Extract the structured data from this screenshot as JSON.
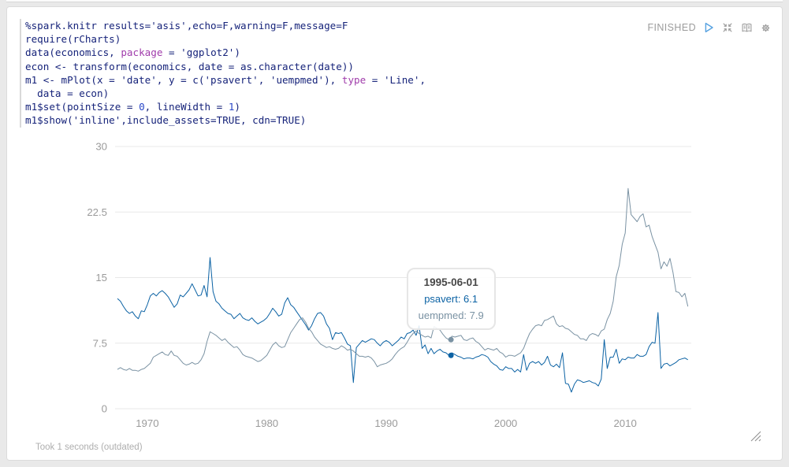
{
  "status_bar": {
    "status": "FINISHED",
    "icons": [
      "play-icon",
      "compress-icon",
      "book-icon",
      "gear-icon"
    ]
  },
  "code": {
    "lines": [
      [
        {
          "t": "%spark.knitr results='asis',echo=F,warning=F,message=F"
        }
      ],
      [
        {
          "t": "require(rCharts)"
        }
      ],
      [
        {
          "t": "data(economics, "
        },
        {
          "t": "package",
          "c": "kw"
        },
        {
          "t": " = 'ggplot2')"
        }
      ],
      [
        {
          "t": "econ <- transform(economics, date = as.character(date))"
        }
      ],
      [
        {
          "t": "m1 <- mPlot(x = 'date', y = c('psavert', 'uempmed'), "
        },
        {
          "t": "type",
          "c": "kw"
        },
        {
          "t": " = 'Line',"
        }
      ],
      [
        {
          "t": "  data = econ)"
        }
      ],
      [
        {
          "t": "m1$set(pointSize = "
        },
        {
          "t": "0",
          "c": "num"
        },
        {
          "t": ", lineWidth = "
        },
        {
          "t": "1",
          "c": "num"
        },
        {
          "t": ")"
        }
      ],
      [
        {
          "t": "m1$show('inline',include_assets=TRUE, cdn=TRUE)"
        }
      ]
    ]
  },
  "footer": {
    "took_text": "Took 1 seconds (outdated)"
  },
  "colors": {
    "code_base": "#16237a",
    "code_keyword": "#a03cab",
    "code_number": "#2846c8",
    "psavert_line": "#0b62a4",
    "uempmed_line": "#7a92a3",
    "grid": "#e8e8e8",
    "axis_text": "#9b9b9b",
    "status_text": "#9c9c9c",
    "play_icon": "#55a1e0",
    "icon_gray": "#9a9a9a"
  },
  "chart_data": {
    "type": "line",
    "title": "",
    "xlabel": "",
    "ylabel": "",
    "xlim": [
      1967.5,
      2015.4
    ],
    "ylim": [
      0,
      30
    ],
    "yticks": [
      0,
      7.5,
      15,
      22.5,
      30
    ],
    "xticks": [
      1970,
      1980,
      1990,
      2000,
      2010
    ],
    "grid": "horizontal-only",
    "legend": "none",
    "x_start": 1967.5,
    "x_step": 0.25,
    "series": [
      {
        "name": "psavert",
        "color": "#0b62a4",
        "values": [
          12.6,
          12.3,
          11.7,
          11.2,
          10.9,
          11.1,
          10.6,
          10.3,
          11.2,
          11.1,
          11.9,
          12.9,
          13.2,
          12.9,
          13.3,
          13.5,
          13.2,
          12.8,
          12.2,
          11.6,
          12.0,
          13.0,
          12.8,
          13.2,
          13.6,
          14.3,
          13.6,
          12.9,
          13.0,
          14.1,
          12.8,
          17.3,
          13.4,
          12.3,
          12.0,
          11.5,
          11.2,
          10.9,
          10.8,
          10.3,
          10.6,
          10.9,
          10.4,
          10.2,
          10.1,
          10.4,
          10.0,
          9.7,
          9.9,
          10.1,
          10.4,
          10.9,
          11.5,
          11.1,
          10.6,
          10.8,
          12.1,
          12.7,
          11.9,
          11.6,
          11.1,
          10.6,
          10.1,
          9.6,
          9.0,
          9.5,
          10.3,
          10.9,
          11.0,
          10.6,
          9.7,
          9.2,
          7.9,
          8.7,
          8.6,
          8.7,
          8.1,
          7.4,
          7.2,
          3.0,
          7.0,
          7.4,
          7.8,
          7.6,
          7.8,
          8.0,
          7.9,
          7.5,
          7.2,
          7.6,
          7.8,
          7.6,
          7.2,
          7.5,
          7.8,
          8.2,
          8.0,
          8.6,
          8.7,
          9.0,
          8.4,
          9.5,
          6.9,
          7.3,
          6.3,
          6.9,
          6.3,
          6.6,
          6.8,
          6.5,
          6.4,
          6.1,
          6.4,
          6.2,
          6.0,
          5.9,
          5.7,
          5.8,
          5.8,
          5.7,
          5.9,
          6.0,
          6.2,
          6.1,
          5.9,
          5.4,
          5.1,
          4.9,
          4.5,
          4.4,
          4.8,
          4.6,
          4.6,
          4.2,
          4.5,
          4.2,
          6.2,
          4.4,
          5.2,
          5.4,
          5.2,
          5.4,
          5.0,
          5.3,
          6.0,
          5.0,
          4.8,
          5.1,
          4.7,
          6.4,
          2.9,
          2.8,
          1.9,
          2.8,
          3.3,
          3.2,
          3.0,
          3.1,
          3.2,
          3.0,
          2.9,
          2.6,
          3.4,
          7.9,
          4.6,
          5.9,
          5.9,
          6.8,
          5.2,
          5.7,
          5.6,
          5.9,
          5.8,
          5.8,
          6.2,
          6.0,
          6.0,
          6.2,
          7.1,
          7.6,
          7.5,
          11.0,
          4.6,
          5.1,
          5.2,
          4.9,
          5.1,
          5.3,
          5.6,
          5.7,
          5.8,
          5.6
        ]
      },
      {
        "name": "uempmed",
        "color": "#7a92a3",
        "values": [
          4.5,
          4.7,
          4.5,
          4.4,
          4.6,
          4.4,
          4.4,
          4.3,
          4.5,
          4.6,
          4.9,
          5.2,
          5.9,
          6.1,
          6.3,
          6.5,
          6.2,
          6.1,
          6.6,
          6.1,
          6.0,
          5.6,
          5.2,
          5.0,
          5.1,
          5.3,
          5.1,
          5.2,
          5.6,
          6.3,
          7.7,
          8.8,
          8.6,
          8.4,
          8.1,
          7.8,
          8.0,
          7.6,
          7.3,
          7.0,
          7.1,
          6.7,
          6.2,
          6.0,
          5.9,
          5.8,
          5.6,
          5.4,
          5.5,
          5.8,
          6.1,
          6.7,
          7.3,
          7.6,
          7.2,
          7.0,
          7.1,
          7.9,
          8.7,
          9.2,
          9.7,
          10.2,
          10.4,
          9.9,
          9.2,
          8.8,
          8.2,
          7.8,
          7.4,
          7.2,
          7.0,
          7.1,
          6.9,
          6.8,
          6.9,
          7.2,
          7.0,
          6.7,
          6.8,
          6.6,
          6.3,
          6.0,
          6.0,
          5.9,
          6.0,
          5.8,
          5.4,
          4.8,
          5.0,
          5.1,
          5.2,
          5.4,
          5.7,
          6.2,
          6.6,
          6.9,
          7.1,
          7.6,
          8.2,
          8.6,
          8.9,
          8.6,
          8.4,
          8.2,
          8.3,
          8.1,
          9.4,
          9.2,
          9.0,
          8.5,
          8.1,
          7.9,
          8.3,
          8.2,
          8.3,
          8.4,
          7.9,
          7.8,
          8.0,
          8.1,
          7.7,
          7.5,
          7.1,
          6.7,
          6.9,
          6.8,
          6.7,
          6.9,
          6.5,
          6.3,
          5.9,
          6.1,
          6.1,
          6.0,
          6.2,
          6.4,
          6.9,
          7.8,
          8.6,
          9.1,
          9.5,
          9.6,
          9.5,
          10.1,
          10.2,
          10.4,
          10.6,
          9.7,
          9.4,
          9.5,
          9.2,
          9.1,
          8.8,
          8.5,
          8.4,
          8.0,
          8.0,
          7.8,
          8.4,
          8.6,
          8.5,
          8.3,
          8.9,
          9.1,
          10.2,
          10.9,
          12.3,
          15.1,
          16.4,
          18.8,
          20.1,
          25.2,
          22.2,
          21.8,
          21.4,
          22.0,
          22.3,
          20.8,
          21.0,
          19.7,
          18.8,
          17.9,
          16.0,
          16.8,
          16.3,
          17.2,
          15.6,
          13.4,
          13.3,
          12.8,
          13.2,
          11.7
        ]
      }
    ],
    "tooltip": {
      "date": "1995-06-01",
      "x_year": 1995.417,
      "rows": [
        {
          "series": "psavert",
          "value": 6.1,
          "text": "psavert: 6.1"
        },
        {
          "series": "uempmed",
          "value": 7.9,
          "text": "uempmed: 7.9"
        }
      ]
    }
  }
}
